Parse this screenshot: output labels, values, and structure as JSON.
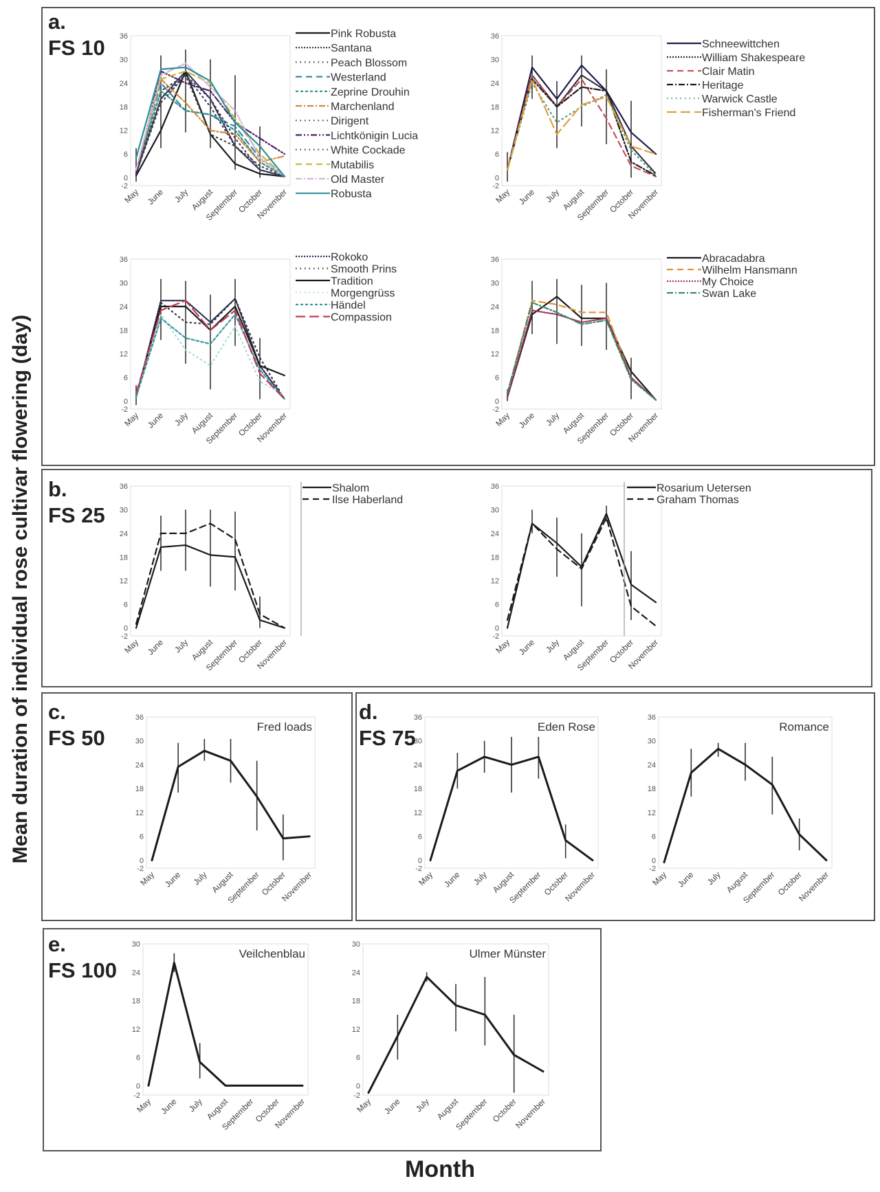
{
  "figure": {
    "y_axis_label": "Mean duration of individual rose cultivar flowering (day)",
    "x_axis_label": "Month"
  },
  "panels": [
    {
      "id": "a",
      "letter": "a.",
      "group": "FS 10"
    },
    {
      "id": "b",
      "letter": "b.",
      "group": "FS 25"
    },
    {
      "id": "c",
      "letter": "c.",
      "group": "FS 50"
    },
    {
      "id": "d",
      "letter": "d.",
      "group": "FS 75"
    },
    {
      "id": "e",
      "letter": "e.",
      "group": "FS 100"
    }
  ],
  "chart_data": [
    {
      "id": "a1",
      "panel": "a",
      "type": "line",
      "categories": [
        "May",
        "June",
        "July",
        "August",
        "September",
        "October",
        "November"
      ],
      "yticks": [
        -2,
        0,
        6,
        12,
        18,
        24,
        30,
        36
      ],
      "ylim": [
        -2,
        36
      ],
      "xlabel": "",
      "ylabel": "",
      "legend": "right",
      "series": [
        {
          "name": "Pink Robusta",
          "color": "#1a1a1a",
          "dash": "solid",
          "values": [
            0.5,
            12,
            27,
            11,
            3.5,
            1,
            0.3
          ]
        },
        {
          "name": "Santana",
          "color": "#333344",
          "dash": "dotted",
          "values": [
            1,
            20,
            27,
            20,
            8,
            2,
            0.3
          ]
        },
        {
          "name": "Peach Blossom",
          "color": "#3a3a55",
          "dash": "sparsedot",
          "values": [
            1,
            22,
            26,
            18,
            8,
            3,
            0.3
          ]
        },
        {
          "name": "Westerland",
          "color": "#3a86a8",
          "dash": "dash",
          "values": [
            2,
            24,
            17,
            16,
            13,
            5,
            0.3
          ]
        },
        {
          "name": "Zeprine Drouhin",
          "color": "#2f8f8a",
          "dash": "shortdash",
          "values": [
            2,
            22,
            17,
            16,
            12,
            4,
            0.3
          ]
        },
        {
          "name": "Marchenland",
          "color": "#d08a3a",
          "dash": "dashdot",
          "values": [
            2,
            25,
            19,
            12,
            11,
            4,
            5.5
          ]
        },
        {
          "name": "Dirigent",
          "color": "#444444",
          "dash": "sparsedot",
          "values": [
            1,
            19,
            26,
            11,
            8,
            2,
            0.3
          ]
        },
        {
          "name": "Lichtkönigin Lucia",
          "color": "#4a1e6a",
          "dash": "dashdotdot",
          "values": [
            1,
            27,
            24,
            22,
            14,
            10,
            6
          ]
        },
        {
          "name": "White Cockade",
          "color": "#3a3a66",
          "dash": "sparsedot",
          "values": [
            1,
            20,
            26,
            20,
            10,
            2,
            0.3
          ]
        },
        {
          "name": "Mutabilis",
          "color": "#c2b83a",
          "dash": "dash",
          "values": [
            2,
            25,
            27,
            24,
            15,
            6,
            0.3
          ]
        },
        {
          "name": "Old Master",
          "color": "#d7b4d8",
          "dash": "dashdot",
          "values": [
            2,
            26,
            29,
            23,
            17,
            5,
            0.3
          ]
        },
        {
          "name": "Robusta",
          "color": "#2a8f97",
          "dash": "solid",
          "values": [
            5,
            27.5,
            28,
            24.5,
            14,
            8,
            0.3
          ]
        }
      ],
      "error_bars": [
        [
          -1,
          7.5
        ],
        [
          7.5,
          31
        ],
        [
          11.5,
          32.5
        ],
        [
          7.5,
          30
        ],
        [
          2,
          26
        ],
        [
          0,
          13
        ],
        null
      ]
    },
    {
      "id": "a2",
      "panel": "a",
      "type": "line",
      "categories": [
        "May",
        "June",
        "July",
        "August",
        "September",
        "October",
        "November"
      ],
      "yticks": [
        -2,
        0,
        6,
        12,
        18,
        24,
        30,
        36
      ],
      "ylim": [
        -2,
        36
      ],
      "xlabel": "",
      "ylabel": "",
      "legend": "right",
      "series": [
        {
          "name": "Schneewittchen",
          "color": "#1c1c4a",
          "dash": "solid",
          "values": [
            2,
            28,
            20,
            28.5,
            22,
            11.5,
            6
          ]
        },
        {
          "name": "William Shakespeare",
          "color": "#2a2a3a",
          "dash": "dotted",
          "values": [
            2,
            26,
            18,
            26,
            22,
            8,
            1
          ]
        },
        {
          "name": "Clair Matin",
          "color": "#c8505a",
          "dash": "dash",
          "values": [
            2,
            26,
            18,
            25,
            15,
            3,
            0.3
          ]
        },
        {
          "name": "Heritage",
          "color": "#1a1a1a",
          "dash": "dashdot",
          "values": [
            2,
            25,
            18,
            23,
            22,
            4,
            0.5
          ]
        },
        {
          "name": "Warwick Castle",
          "color": "#5a9a8a",
          "dash": "sparsedot",
          "values": [
            2,
            24,
            14,
            18,
            21,
            7,
            0.5
          ]
        },
        {
          "name": "Fisherman's Friend",
          "color": "#e0a040",
          "dash": "longdash",
          "values": [
            2,
            25,
            11,
            18.5,
            20.5,
            8,
            6
          ]
        }
      ],
      "error_bars": [
        [
          -1,
          6.5
        ],
        [
          20,
          31
        ],
        [
          7.5,
          24.5
        ],
        [
          13,
          31
        ],
        [
          8.5,
          27.5
        ],
        [
          0,
          19.5
        ],
        null
      ]
    },
    {
      "id": "a3",
      "panel": "a",
      "type": "line",
      "categories": [
        "May",
        "June",
        "July",
        "August",
        "September",
        "October",
        "November"
      ],
      "yticks": [
        -2,
        0,
        6,
        12,
        18,
        24,
        30,
        36
      ],
      "ylim": [
        -2,
        36
      ],
      "xlabel": "",
      "ylabel": "",
      "legend": "right",
      "series": [
        {
          "name": "Rokoko",
          "color": "#2a2a55",
          "dash": "dotted",
          "values": [
            1,
            25.5,
            25.5,
            20,
            26,
            9,
            0.5
          ]
        },
        {
          "name": "Smooth Prins",
          "color": "#333333",
          "dash": "sparsedot",
          "values": [
            1,
            25,
            20,
            19.5,
            26,
            11,
            0.5
          ]
        },
        {
          "name": "Tradition",
          "color": "#1a1a1a",
          "dash": "solid",
          "values": [
            1,
            24,
            24,
            18,
            24,
            9,
            6.5
          ]
        },
        {
          "name": "Morgengrüss",
          "color": "#a8dcd8",
          "dash": "sparsedot",
          "values": [
            1,
            22,
            13,
            9,
            19,
            5,
            1.5
          ]
        },
        {
          "name": "Händel",
          "color": "#3a9aa2",
          "dash": "shortdash",
          "values": [
            1,
            21,
            16,
            14.5,
            22,
            8,
            0.5
          ]
        },
        {
          "name": "Compassion",
          "color": "#c2385a",
          "dash": "longdash",
          "values": [
            2,
            23,
            25.5,
            18,
            23,
            7,
            0.5
          ]
        }
      ],
      "error_bars": [
        [
          -1,
          4
        ],
        [
          15.5,
          31
        ],
        [
          9.5,
          30.5
        ],
        [
          3,
          27
        ],
        [
          14,
          31
        ],
        [
          0.5,
          16
        ],
        null
      ]
    },
    {
      "id": "a4",
      "panel": "a",
      "type": "line",
      "categories": [
        "May",
        "June",
        "July",
        "August",
        "September",
        "October",
        "November"
      ],
      "yticks": [
        -2,
        0,
        6,
        12,
        18,
        24,
        30,
        36
      ],
      "ylim": [
        -2,
        36
      ],
      "xlabel": "",
      "ylabel": "",
      "legend": "right",
      "series": [
        {
          "name": "Abracadabra",
          "color": "#1a1a1a",
          "dash": "solid",
          "values": [
            1,
            22,
            26.5,
            21,
            21,
            7.5,
            0.3
          ]
        },
        {
          "name": "Wilhelm Hansmann",
          "color": "#e0943a",
          "dash": "dash",
          "values": [
            2,
            25.5,
            24.5,
            22.5,
            22.5,
            6,
            0.3
          ]
        },
        {
          "name": "My Choice",
          "color": "#a0305a",
          "dash": "dotted",
          "values": [
            1,
            23,
            22,
            20,
            21,
            6,
            0.3
          ]
        },
        {
          "name": "Swan Lake",
          "color": "#3a8a6a",
          "dash": "dashdot",
          "values": [
            2,
            25,
            22.5,
            19.5,
            20.5,
            5.5,
            0.3
          ]
        }
      ],
      "error_bars": [
        [
          0,
          3
        ],
        [
          17,
          30.5
        ],
        [
          14.5,
          31
        ],
        [
          14,
          29.5
        ],
        [
          13,
          30
        ],
        [
          0.5,
          11
        ],
        null
      ]
    },
    {
      "id": "b1",
      "panel": "b",
      "type": "line",
      "categories": [
        "May",
        "June",
        "July",
        "August",
        "September",
        "October",
        "November"
      ],
      "yticks": [
        -2,
        0,
        6,
        12,
        18,
        24,
        30,
        36
      ],
      "ylim": [
        -2,
        36
      ],
      "xlabel": "",
      "ylabel": "",
      "legend": "right",
      "series": [
        {
          "name": "Shalom",
          "color": "#1a1a1a",
          "dash": "solid",
          "values": [
            0,
            20.5,
            21,
            18.5,
            18,
            2,
            0
          ]
        },
        {
          "name": "Ilse Haberland",
          "color": "#1a1a1a",
          "dash": "dash",
          "values": [
            1,
            24,
            24,
            26.5,
            22.5,
            3.5,
            0
          ]
        }
      ],
      "error_bars": [
        null,
        [
          14.5,
          28.5
        ],
        [
          14.5,
          30
        ],
        [
          10.5,
          30
        ],
        [
          9.5,
          29.5
        ],
        [
          0,
          8
        ],
        null
      ]
    },
    {
      "id": "b2",
      "panel": "b",
      "type": "line",
      "categories": [
        "May",
        "June",
        "July",
        "August",
        "September",
        "October",
        "November"
      ],
      "yticks": [
        -2,
        0,
        6,
        12,
        18,
        24,
        30,
        36
      ],
      "ylim": [
        -2,
        36
      ],
      "xlabel": "",
      "ylabel": "",
      "legend": "right",
      "series": [
        {
          "name": "Rosarium Uetersen",
          "color": "#1a1a1a",
          "dash": "solid",
          "values": [
            0,
            26.5,
            21.5,
            15.5,
            29,
            11,
            6.5
          ]
        },
        {
          "name": "Graham Thomas",
          "color": "#1a1a1a",
          "dash": "dash",
          "values": [
            2,
            26.5,
            20,
            15,
            28,
            5.5,
            0.5
          ]
        }
      ],
      "error_bars": [
        null,
        [
          24,
          30
        ],
        [
          13,
          28
        ],
        [
          5.5,
          24
        ],
        [
          27,
          31
        ],
        [
          2,
          19.5
        ],
        null
      ]
    },
    {
      "id": "c1",
      "panel": "c",
      "type": "line",
      "title": "Fred loads",
      "categories": [
        "May",
        "June",
        "July",
        "August",
        "September",
        "October",
        "November"
      ],
      "yticks": [
        -2,
        0,
        6,
        12,
        18,
        24,
        30,
        36
      ],
      "ylim": [
        -2,
        36
      ],
      "xlabel": "",
      "ylabel": "",
      "legend": "none",
      "series": [
        {
          "name": "Fred loads",
          "color": "#1a1a1a",
          "dash": "solid",
          "values": [
            0,
            23.5,
            27.5,
            25,
            16,
            5.5,
            6
          ]
        }
      ],
      "error_bars": [
        null,
        [
          17,
          29.5
        ],
        [
          25,
          30.5
        ],
        [
          19.5,
          30.5
        ],
        [
          7.5,
          25
        ],
        [
          0,
          11.5
        ],
        null
      ]
    },
    {
      "id": "d1",
      "panel": "d",
      "type": "line",
      "title": "Eden Rose",
      "categories": [
        "May",
        "June",
        "July",
        "August",
        "September",
        "October",
        "November"
      ],
      "yticks": [
        -2,
        0,
        6,
        12,
        18,
        24,
        30,
        36
      ],
      "ylim": [
        -2,
        36
      ],
      "xlabel": "",
      "ylabel": "",
      "legend": "none",
      "series": [
        {
          "name": "Eden Rose",
          "color": "#1a1a1a",
          "dash": "solid",
          "values": [
            0,
            22.5,
            26,
            24,
            26,
            5,
            0
          ]
        }
      ],
      "error_bars": [
        null,
        [
          18,
          27
        ],
        [
          22,
          30
        ],
        [
          17,
          31
        ],
        [
          20.5,
          31
        ],
        [
          0.5,
          9
        ],
        null
      ]
    },
    {
      "id": "d2",
      "panel": "d",
      "type": "line",
      "title": "Romance",
      "categories": [
        "May",
        "June",
        "July",
        "August",
        "September",
        "October",
        "November"
      ],
      "yticks": [
        -2,
        0,
        6,
        12,
        18,
        24,
        30,
        36
      ],
      "ylim": [
        -2,
        36
      ],
      "xlabel": "",
      "ylabel": "",
      "legend": "none",
      "series": [
        {
          "name": "Romance",
          "color": "#1a1a1a",
          "dash": "solid",
          "values": [
            -0.5,
            22,
            28,
            24,
            19,
            6.5,
            0
          ]
        }
      ],
      "error_bars": [
        null,
        [
          16,
          28
        ],
        [
          26,
          29.5
        ],
        [
          20,
          29.5
        ],
        [
          11.5,
          26
        ],
        [
          2.5,
          10.5
        ],
        null
      ]
    },
    {
      "id": "e1",
      "panel": "e",
      "type": "line",
      "title": "Veilchenblau",
      "categories": [
        "May",
        "June",
        "July",
        "August",
        "September",
        "October",
        "November"
      ],
      "yticks": [
        -2,
        0,
        6,
        12,
        18,
        24,
        30
      ],
      "ylim": [
        -2,
        30
      ],
      "xlabel": "",
      "ylabel": "",
      "legend": "none",
      "series": [
        {
          "name": "Veilchenblau",
          "color": "#1a1a1a",
          "dash": "solid",
          "values": [
            0,
            26,
            5,
            0,
            0,
            0,
            0
          ]
        }
      ],
      "error_bars": [
        null,
        [
          24,
          28
        ],
        [
          1.5,
          9
        ],
        null,
        null,
        null,
        null
      ]
    },
    {
      "id": "e2",
      "panel": "e",
      "type": "line",
      "title": "Ulmer Münster",
      "categories": [
        "May",
        "June",
        "July",
        "August",
        "September",
        "October",
        "November"
      ],
      "yticks": [
        -2,
        0,
        6,
        12,
        18,
        24,
        30
      ],
      "ylim": [
        -2,
        30
      ],
      "xlabel": "",
      "ylabel": "",
      "legend": "none",
      "series": [
        {
          "name": "Ulmer Münster",
          "color": "#1a1a1a",
          "dash": "solid",
          "values": [
            -1.5,
            10.5,
            23,
            17,
            15,
            6.5,
            3
          ]
        }
      ],
      "error_bars": [
        null,
        [
          5.5,
          15
        ],
        [
          22,
          24
        ],
        [
          11.5,
          21.5
        ],
        [
          8.5,
          23
        ],
        [
          -1.5,
          15
        ],
        null
      ]
    }
  ]
}
